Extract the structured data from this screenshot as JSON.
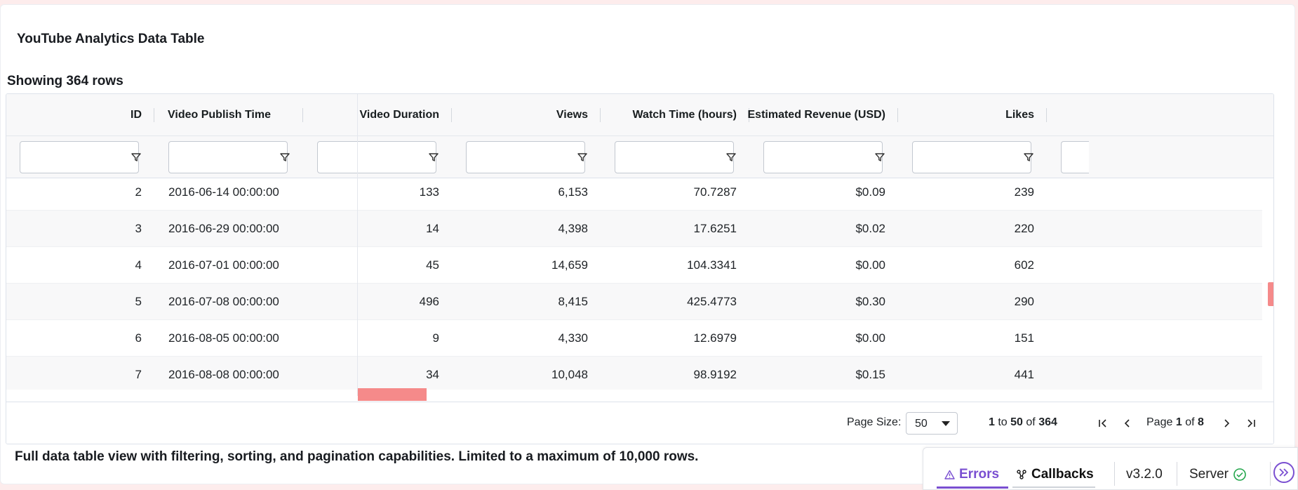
{
  "page": {
    "title": "YouTube Analytics Data Table",
    "row_count_text": "Showing 364 rows",
    "footer_note": "Full data table view with filtering, sorting, and pagination capabilities. Limited to a maximum of 10,000 rows."
  },
  "table": {
    "columns": [
      "ID",
      "Video Publish Time",
      "Video Duration",
      "Views",
      "Watch Time (hours)",
      "Estimated Revenue (USD)",
      "Likes"
    ],
    "rows": [
      [
        "2",
        "2016-06-14 00:00:00",
        "133",
        "6,153",
        "70.7287",
        "$0.09",
        "239"
      ],
      [
        "3",
        "2016-06-29 00:00:00",
        "14",
        "4,398",
        "17.6251",
        "$0.02",
        "220"
      ],
      [
        "4",
        "2016-07-01 00:00:00",
        "45",
        "14,659",
        "104.3341",
        "$0.00",
        "602"
      ],
      [
        "5",
        "2016-07-08 00:00:00",
        "496",
        "8,415",
        "425.4773",
        "$0.30",
        "290"
      ],
      [
        "6",
        "2016-08-05 00:00:00",
        "9",
        "4,330",
        "12.6979",
        "$0.00",
        "151"
      ],
      [
        "7",
        "2016-08-08 00:00:00",
        "34",
        "10,048",
        "98.9192",
        "$0.15",
        "441"
      ]
    ]
  },
  "pagination": {
    "page_size_label": "Page Size:",
    "page_size_value": "50",
    "range_from": "1",
    "range_to_word": "to",
    "range_to": "50",
    "range_of_word": "of",
    "range_total": "364",
    "page_word": "Page",
    "current_page": "1",
    "of_word": "of",
    "total_pages": "8"
  },
  "devtools": {
    "errors_label": "Errors",
    "callbacks_label": "Callbacks",
    "version": "v3.2.0",
    "server_label": "Server"
  },
  "colors": {
    "accent_purple": "#7a4fd1",
    "scroll_thumb": "#f58a8a",
    "server_ok": "#22a64b"
  }
}
